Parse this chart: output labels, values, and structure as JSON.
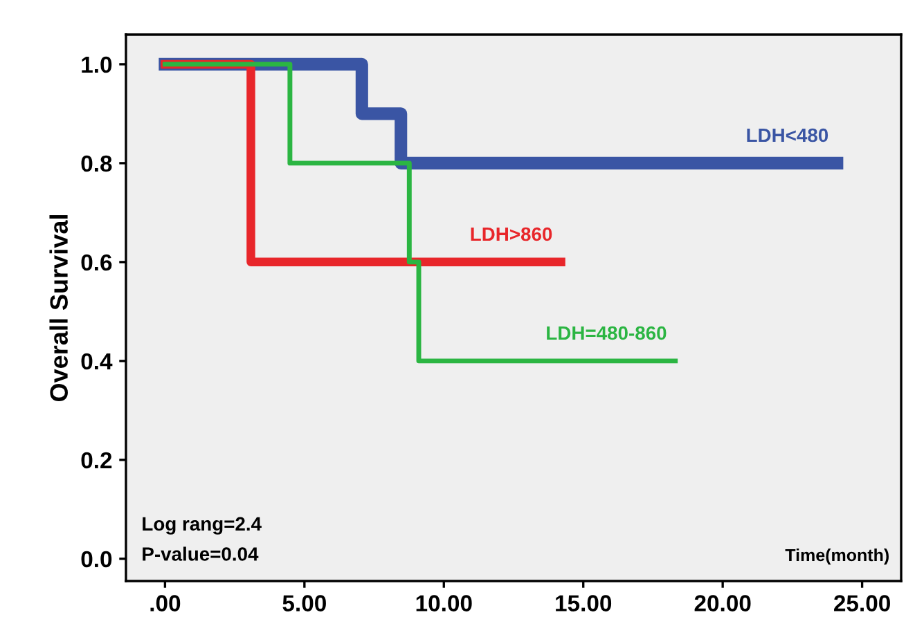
{
  "chart_data": {
    "type": "step",
    "ylabel": "Overall Survival",
    "xlabel": "Time(month)",
    "annotations": [
      "Log rang=2.4",
      "P-value=0.04"
    ],
    "series": [
      {
        "name": "LDH<480",
        "color": "#3a55a4",
        "x": [
          0,
          7.06,
          8.46,
          24.1
        ],
        "values": [
          1.0,
          0.9,
          0.8,
          0.8
        ]
      },
      {
        "name": "LDH>860",
        "color": "#e8262a",
        "x": [
          0,
          3.08,
          14.2
        ],
        "values": [
          1.0,
          0.6,
          0.6
        ]
      },
      {
        "name": "LDH=480-860",
        "color": "#2bb542",
        "x": [
          0,
          4.48,
          8.76,
          9.1,
          18.3
        ],
        "values": [
          1.0,
          0.8,
          0.6,
          0.4,
          0.4
        ]
      }
    ],
    "xlim": [
      -1.4,
      26.4
    ],
    "ylim": [
      -0.045,
      1.06
    ],
    "xticks": [
      {
        "value": 0,
        "label": ".00"
      },
      {
        "value": 5,
        "label": "5.00"
      },
      {
        "value": 10,
        "label": "10.00"
      },
      {
        "value": 15,
        "label": "15.00"
      },
      {
        "value": 20,
        "label": "20.00"
      },
      {
        "value": 25,
        "label": "25.00"
      }
    ],
    "yticks": [
      {
        "value": 0,
        "label": "0.0"
      },
      {
        "value": 0.2,
        "label": "0.2"
      },
      {
        "value": 0.4,
        "label": "0.4"
      },
      {
        "value": 0.6,
        "label": "0.6"
      },
      {
        "value": 0.8,
        "label": "0.8"
      },
      {
        "value": 1.0,
        "label": "1.0"
      }
    ],
    "grid": false,
    "legend": false
  }
}
